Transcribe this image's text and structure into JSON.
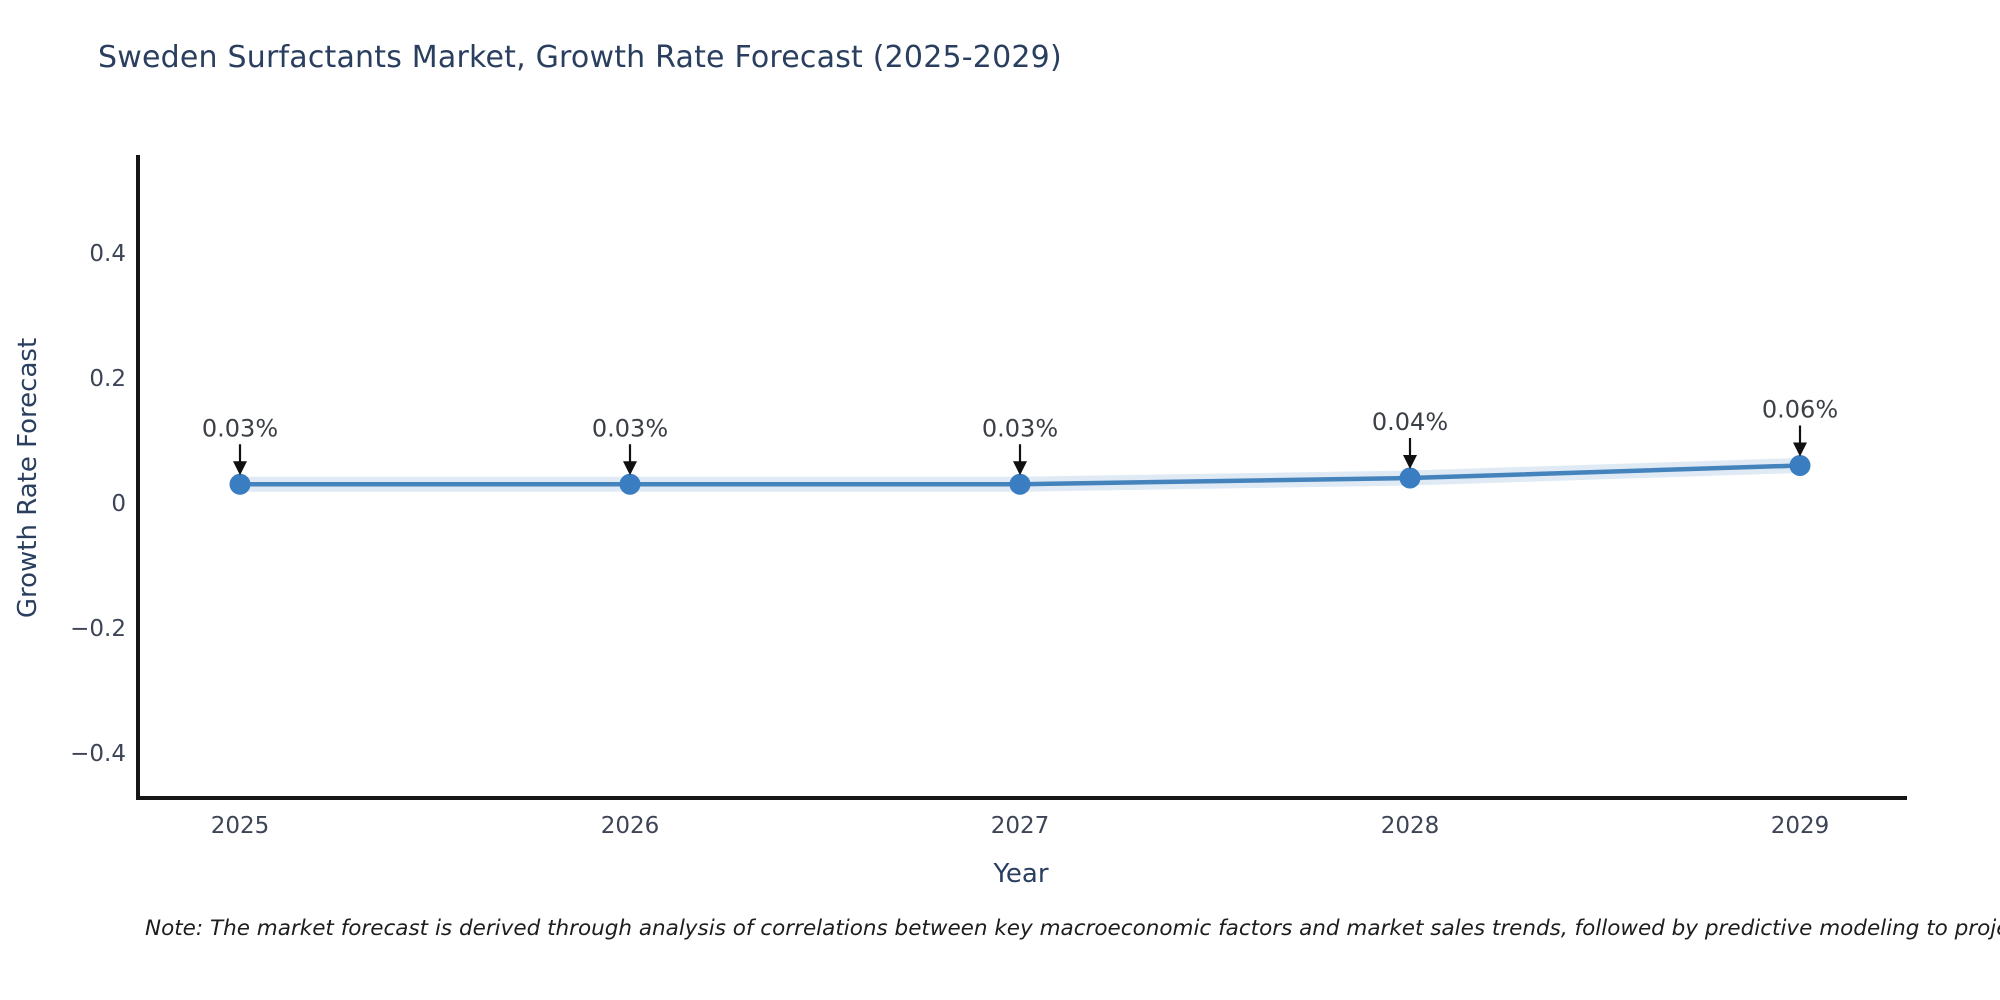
{
  "title": {
    "text": "Sweden Surfactants Market, Growth Rate Forecast (2025-2029)"
  },
  "axes": {
    "x_title": "Year",
    "y_title": "Growth Rate Forecast"
  },
  "note": {
    "text": "Note: The market forecast is derived through analysis of correlations between key macroeconomic factors and market sales trends, followed by predictive modeling to project future sales"
  },
  "chart_data": {
    "type": "line",
    "title": "Sweden Surfactants Market, Growth Rate Forecast (2025-2029)",
    "xlabel": "Year",
    "ylabel": "Growth Rate Forecast",
    "x": [
      2025,
      2026,
      2027,
      2028,
      2029
    ],
    "series": [
      {
        "name": "Growth Rate Forecast",
        "values": [
          0.03,
          0.03,
          0.03,
          0.04,
          0.06
        ]
      }
    ],
    "point_labels": [
      "0.03%",
      "0.03%",
      "0.03%",
      "0.04%",
      "0.06%"
    ],
    "xtick_labels": [
      "2025",
      "2026",
      "2027",
      "2028",
      "2029"
    ],
    "ytick_labels": [
      "0.4",
      "0.2",
      "0",
      "−0.2",
      "−0.4"
    ],
    "ytick_values": [
      0.4,
      0.2,
      0,
      -0.2,
      -0.4
    ],
    "ylim": [
      -0.475,
      0.555
    ],
    "grid": false,
    "legend": "none",
    "annotation_style": "arrow-down-to-point",
    "colors": {
      "line": "#4583bd",
      "line_halo": "#dfeaf5",
      "marker": "#3b7dc1",
      "axis_line": "#161616",
      "tick_label": "#3c4455",
      "annotation_text": "#3b3f46",
      "annotation_arrow": "#111111",
      "title": "#2a3f5f"
    }
  }
}
